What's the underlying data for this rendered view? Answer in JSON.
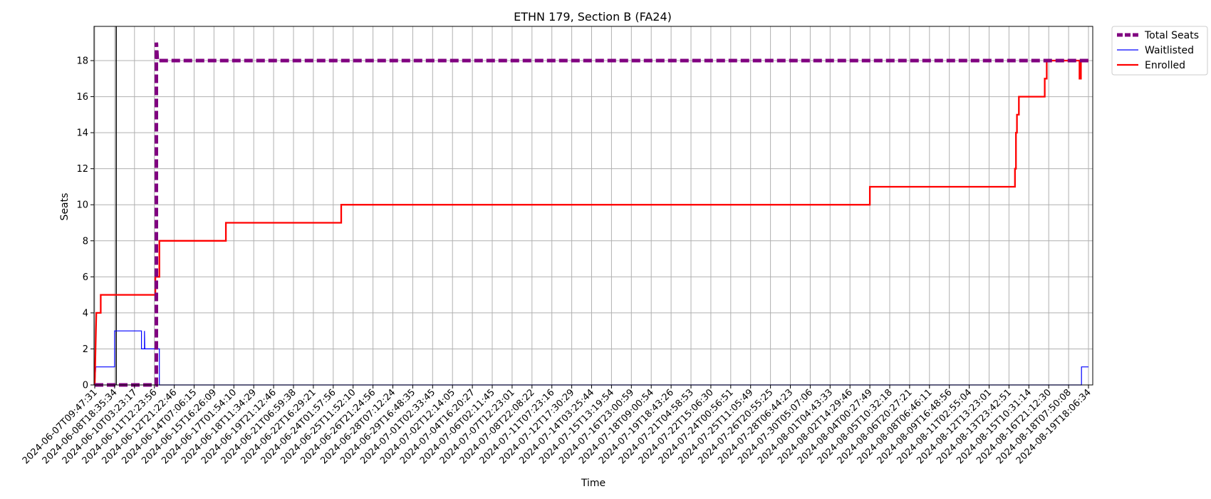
{
  "chart_data": {
    "type": "line",
    "title": "ETHN 179, Section B (FA24)",
    "xlabel": "Time",
    "ylabel": "Seats",
    "ylim": [
      0,
      19.9
    ],
    "yticks": [
      0,
      2,
      4,
      6,
      8,
      10,
      12,
      14,
      16,
      18
    ],
    "grid": true,
    "legend_position": "outside-top-right",
    "x_ticks": [
      "2024-06-07T09:47:31",
      "2024-06-08T18:35:34",
      "2024-06-10T03:23:17",
      "2024-06-11T12:23:56",
      "2024-06-12T21:22:46",
      "2024-06-14T07:06:15",
      "2024-06-15T16:26:09",
      "2024-06-17T01:54:10",
      "2024-06-18T11:34:29",
      "2024-06-19T21:12:46",
      "2024-06-21T06:59:38",
      "2024-06-22T16:29:21",
      "2024-06-24T01:57:56",
      "2024-06-25T11:52:10",
      "2024-06-26T21:24:56",
      "2024-06-28T07:12:24",
      "2024-06-29T16:48:35",
      "2024-07-01T02:33:45",
      "2024-07-02T12:14:05",
      "2024-07-04T16:20:27",
      "2024-07-06T02:11:45",
      "2024-07-07T12:23:01",
      "2024-07-08T22:08:22",
      "2024-07-11T07:23:16",
      "2024-07-12T17:30:29",
      "2024-07-14T03:25:44",
      "2024-07-15T13:19:54",
      "2024-07-16T23:00:59",
      "2024-07-18T09:00:54",
      "2024-07-19T18:43:26",
      "2024-07-21T04:58:53",
      "2024-07-22T15:06:30",
      "2024-07-24T00:56:51",
      "2024-07-25T11:05:49",
      "2024-07-26T20:55:25",
      "2024-07-28T06:44:23",
      "2024-07-30T05:07:06",
      "2024-08-01T04:43:33",
      "2024-08-02T14:29:46",
      "2024-08-04T00:27:49",
      "2024-08-05T10:32:18",
      "2024-08-06T20:27:21",
      "2024-08-08T06:46:11",
      "2024-08-09T16:48:56",
      "2024-08-11T02:55:04",
      "2024-08-12T13:23:01",
      "2024-08-13T23:42:51",
      "2024-08-15T10:31:14",
      "2024-08-16T21:12:30",
      "2024-08-18T07:50:08",
      "2024-08-19T18:06:34"
    ],
    "series": [
      {
        "name": "Total Seats",
        "color": "#800080",
        "style": "dashed-thick",
        "points": [
          [
            0,
            0
          ],
          [
            3.1,
            0
          ],
          [
            3.1,
            19
          ],
          [
            3.15,
            18
          ],
          [
            50.0,
            18
          ]
        ]
      },
      {
        "name": "Waitlisted",
        "color": "#0000ff",
        "style": "thin",
        "points": [
          [
            0,
            0
          ],
          [
            0.05,
            1
          ],
          [
            1.0,
            1
          ],
          [
            1.0,
            3
          ],
          [
            2.35,
            3
          ],
          [
            2.35,
            2
          ],
          [
            2.5,
            2
          ],
          [
            2.5,
            3
          ],
          [
            2.52,
            2
          ],
          [
            3.25,
            2
          ],
          [
            3.25,
            0
          ],
          [
            49.65,
            0
          ],
          [
            49.65,
            1
          ],
          [
            50.0,
            1
          ]
        ]
      },
      {
        "name": "Enrolled",
        "color": "#ff0000",
        "style": "medium",
        "points": [
          [
            0,
            0
          ],
          [
            0.08,
            4
          ],
          [
            0.3,
            4
          ],
          [
            0.3,
            5
          ],
          [
            3.05,
            5
          ],
          [
            3.05,
            6
          ],
          [
            3.25,
            6
          ],
          [
            3.25,
            8
          ],
          [
            6.6,
            8
          ],
          [
            6.6,
            9
          ],
          [
            12.4,
            9
          ],
          [
            12.4,
            10
          ],
          [
            39.0,
            10
          ],
          [
            39.0,
            11
          ],
          [
            46.3,
            11
          ],
          [
            46.3,
            12
          ],
          [
            46.35,
            12
          ],
          [
            46.35,
            14
          ],
          [
            46.4,
            14
          ],
          [
            46.4,
            15
          ],
          [
            46.5,
            15
          ],
          [
            46.5,
            16
          ],
          [
            47.8,
            16
          ],
          [
            47.8,
            17
          ],
          [
            47.9,
            17
          ],
          [
            47.9,
            18
          ],
          [
            49.55,
            18
          ],
          [
            49.55,
            17
          ],
          [
            49.62,
            17
          ],
          [
            49.62,
            18
          ],
          [
            50.0,
            18
          ]
        ]
      }
    ],
    "annotations": [
      {
        "type": "vertical-line",
        "x": 1.08,
        "color": "#000000"
      }
    ]
  }
}
